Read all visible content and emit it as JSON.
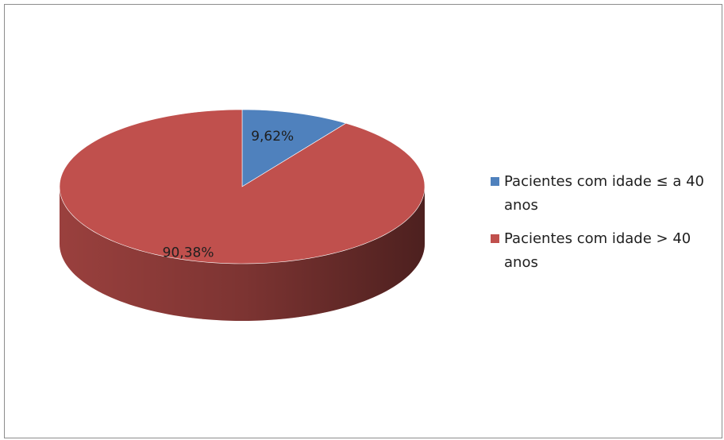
{
  "chart_data": {
    "type": "pie",
    "categories": [
      "Pacientes com idade ≤ a 40 anos",
      "Pacientes com idade > 40 anos"
    ],
    "values": [
      9.62,
      90.38
    ],
    "value_labels": [
      "9,62%",
      "90,38%"
    ],
    "colors": [
      "#4f81bd",
      "#c0504d"
    ],
    "legend": "right"
  }
}
